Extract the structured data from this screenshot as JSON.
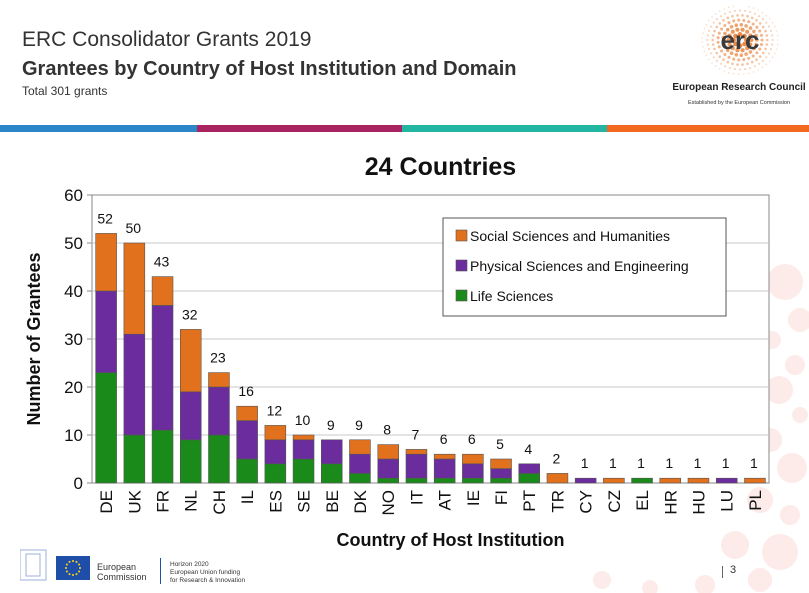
{
  "header": {
    "title": "ERC Consolidator Grants 2019",
    "subtitle": "Grantees by Country of Host Institution and Domain",
    "total": "Total 301 grants"
  },
  "logo": {
    "text": "erc",
    "name": "European Research Council",
    "tagline": "Established by the European Commission"
  },
  "colors": {
    "stripe": [
      "#2b86c9",
      "#a8235f",
      "#22b5a1",
      "#f26a21"
    ],
    "life": "#1a8a1a",
    "physical": "#6b2c9e",
    "social": "#e2711d"
  },
  "chart_data": {
    "type": "bar",
    "stacked": true,
    "title": "24 Countries",
    "xlabel": "Country of Host Institution",
    "ylabel": "Number of Grantees",
    "ylim": [
      0,
      60
    ],
    "yticks": [
      0,
      10,
      20,
      30,
      40,
      50,
      60
    ],
    "legend_position": "top-right",
    "grid": true,
    "categories": [
      "DE",
      "UK",
      "FR",
      "NL",
      "CH",
      "IL",
      "ES",
      "SE",
      "BE",
      "DK",
      "NO",
      "IT",
      "AT",
      "IE",
      "FI",
      "PT",
      "TR",
      "CY",
      "CZ",
      "EL",
      "HR",
      "HU",
      "LU",
      "PL"
    ],
    "series": [
      {
        "name": "Life Sciences",
        "values": [
          23,
          10,
          11,
          9,
          10,
          5,
          4,
          5,
          4,
          2,
          1,
          1,
          1,
          1,
          1,
          2,
          0,
          0,
          0,
          1,
          0,
          0,
          0,
          0
        ]
      },
      {
        "name": "Physical Sciences and Engineering",
        "values": [
          17,
          21,
          26,
          10,
          10,
          8,
          5,
          4,
          5,
          4,
          4,
          5,
          4,
          3,
          2,
          2,
          0,
          1,
          0,
          0,
          0,
          0,
          1,
          0
        ]
      },
      {
        "name": "Social Sciences and Humanities",
        "values": [
          12,
          19,
          6,
          13,
          3,
          3,
          3,
          1,
          0,
          3,
          3,
          1,
          1,
          2,
          2,
          0,
          2,
          0,
          1,
          0,
          1,
          1,
          0,
          1
        ]
      }
    ],
    "totals": [
      52,
      50,
      43,
      32,
      23,
      16,
      12,
      10,
      9,
      9,
      8,
      7,
      6,
      6,
      5,
      4,
      2,
      1,
      1,
      1,
      1,
      1,
      1,
      1
    ],
    "legend_order": [
      "Social Sciences and Humanities",
      "Physical Sciences and Engineering",
      "Life Sciences"
    ]
  },
  "footer": {
    "ec_name_line1": "European",
    "ec_name_line2": "Commission",
    "h2020_line1": "Horizon 2020",
    "h2020_line2": "European Union funding",
    "h2020_line3": "for Research & Innovation",
    "page": "3"
  }
}
